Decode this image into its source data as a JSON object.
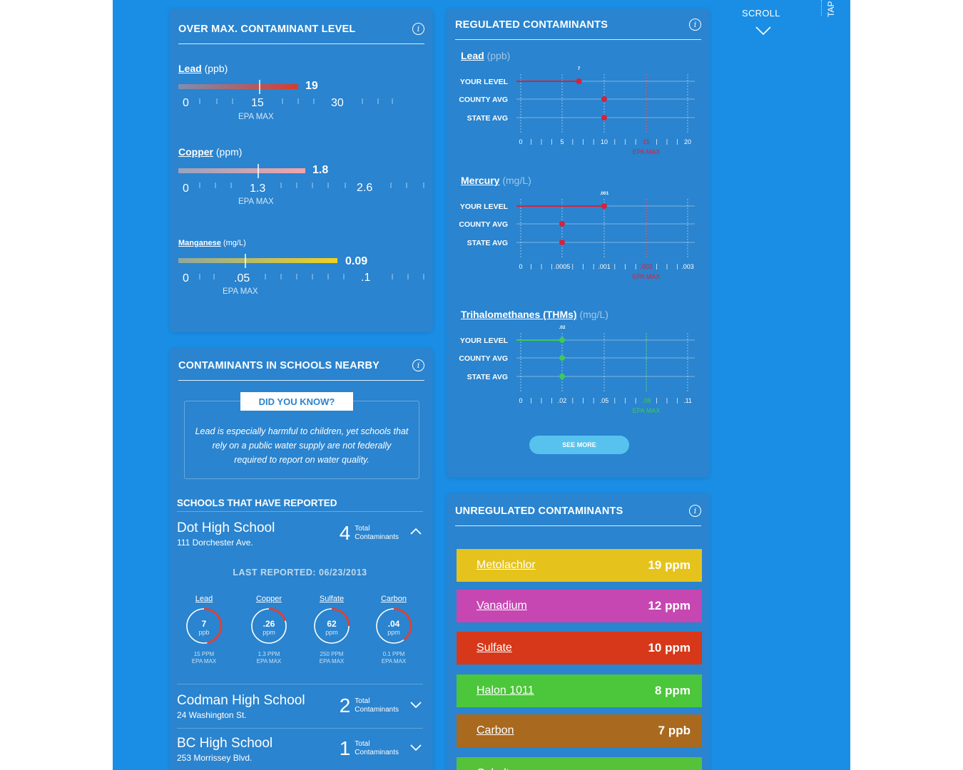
{
  "over_max": {
    "title": "OVER MAX. CONTAMINANT LEVEL",
    "items": [
      {
        "name": "Lead",
        "unit": "(ppb)",
        "value": "19",
        "epa_label": "EPA MAX",
        "ticks": [
          "0",
          "15",
          "30"
        ]
      },
      {
        "name": "Copper",
        "unit": "(ppm)",
        "value": "1.8",
        "epa_label": "EPA MAX",
        "ticks": [
          "0",
          "1.3",
          "2.6"
        ]
      },
      {
        "name": "Manganese",
        "unit": "(mg/L)",
        "value": "0.09",
        "epa_label": "EPA MAX",
        "ticks": [
          "0",
          ".05",
          ".1"
        ]
      }
    ]
  },
  "schools": {
    "title": "CONTAMINANTS IN SCHOOLS NEARBY",
    "did_you_know": "DID YOU KNOW?",
    "fact": "Lead is especially harmful to children, yet schools that rely on a public water supply are not federally required to report on water quality.",
    "reported_title": "SCHOOLS THAT HAVE REPORTED",
    "total_label_1": "Total",
    "total_label_2": "Contaminants",
    "list": [
      {
        "name": "Dot High School",
        "address": "111 Dorchester Ave.",
        "count": "4"
      },
      {
        "name": "Codman High School",
        "address": "24 Washington St.",
        "count": "2"
      },
      {
        "name": "BC High School",
        "address": "253 Morrissey Blvd.",
        "count": "1"
      }
    ],
    "last_reported": "LAST REPORTED: 06/23/2013",
    "gauges": [
      {
        "name": "Lead",
        "value": "7",
        "unit": "ppb",
        "max": "15 PPM",
        "max_label": "EPA MAX",
        "fill": 0.47
      },
      {
        "name": "Copper",
        "value": ".26",
        "unit": "ppm",
        "max": "1.3 PPM",
        "max_label": "EPA MAX",
        "fill": 0.2
      },
      {
        "name": "Sulfate",
        "value": "62",
        "unit": "ppm",
        "max": "250 PPM",
        "max_label": "EPA MAX",
        "fill": 0.25
      },
      {
        "name": "Carbon",
        "value": ".04",
        "unit": "ppm",
        "max": "0.1 PPM",
        "max_label": "EPA MAX",
        "fill": 0.4
      }
    ]
  },
  "regulated": {
    "title": "REGULATED CONTAMINANTS",
    "row_labels": [
      "YOUR LEVEL",
      "COUNTY AVG",
      "STATE AVG"
    ],
    "epa_label": "EPA MAX",
    "see_more": "SEE MORE",
    "charts": [
      {
        "name": "Lead",
        "unit": "(ppb)",
        "your_label": "7",
        "ticks": [
          "0",
          "5",
          "10",
          "15",
          "20"
        ],
        "epa_tick": "15",
        "color": "#d7223a",
        "chart_data": {
          "type": "scatter",
          "xlim": [
            0,
            20
          ],
          "series": [
            {
              "name": "YOUR LEVEL",
              "values": [
                7
              ]
            },
            {
              "name": "COUNTY AVG",
              "values": [
                10
              ]
            },
            {
              "name": "STATE AVG",
              "values": [
                10
              ]
            }
          ],
          "epa_max": 15
        }
      },
      {
        "name": "Mercury",
        "unit": "(mg/L)",
        "your_label": ".001",
        "ticks": [
          "0",
          ".0005",
          ".001",
          ".002",
          ".003"
        ],
        "epa_tick": ".002",
        "color": "#d7223a",
        "chart_data": {
          "type": "scatter",
          "xlim": [
            0,
            0.003
          ],
          "series": [
            {
              "name": "YOUR LEVEL",
              "values": [
                0.001
              ]
            },
            {
              "name": "COUNTY AVG",
              "values": [
                0.0005
              ]
            },
            {
              "name": "STATE AVG",
              "values": [
                0.0005
              ]
            }
          ],
          "epa_max": 0.002
        }
      },
      {
        "name": "Trihalomethanes (THMs)",
        "unit": "(mg/L)",
        "your_label": ".02",
        "ticks": [
          "0",
          ".02",
          ".05",
          ".08",
          ".11"
        ],
        "epa_tick": ".08",
        "color": "#3ec95a",
        "chart_data": {
          "type": "scatter",
          "xlim": [
            0,
            0.11
          ],
          "series": [
            {
              "name": "YOUR LEVEL",
              "values": [
                0.02
              ]
            },
            {
              "name": "COUNTY AVG",
              "values": [
                0.02
              ]
            },
            {
              "name": "STATE AVG",
              "values": [
                0.02
              ]
            }
          ],
          "epa_max": 0.08
        }
      }
    ]
  },
  "unregulated": {
    "title": "UNREGULATED CONTAMINANTS",
    "items": [
      {
        "name": "Metolachlor",
        "value": "19 ppm",
        "color": "#e5c31c"
      },
      {
        "name": "Vanadium",
        "value": "12 ppm",
        "color": "#c646b2"
      },
      {
        "name": "Sulfate",
        "value": "10 ppm",
        "color": "#d7381a"
      },
      {
        "name": "Halon 1011",
        "value": "8 ppm",
        "color": "#4cc63a"
      },
      {
        "name": "Carbon",
        "value": "7 ppb",
        "color": "#a9691e"
      },
      {
        "name": "Cobalt",
        "value": "",
        "color": "#55c23a"
      }
    ]
  },
  "nav": {
    "scroll": "SCROLL",
    "tap": "TAP"
  }
}
